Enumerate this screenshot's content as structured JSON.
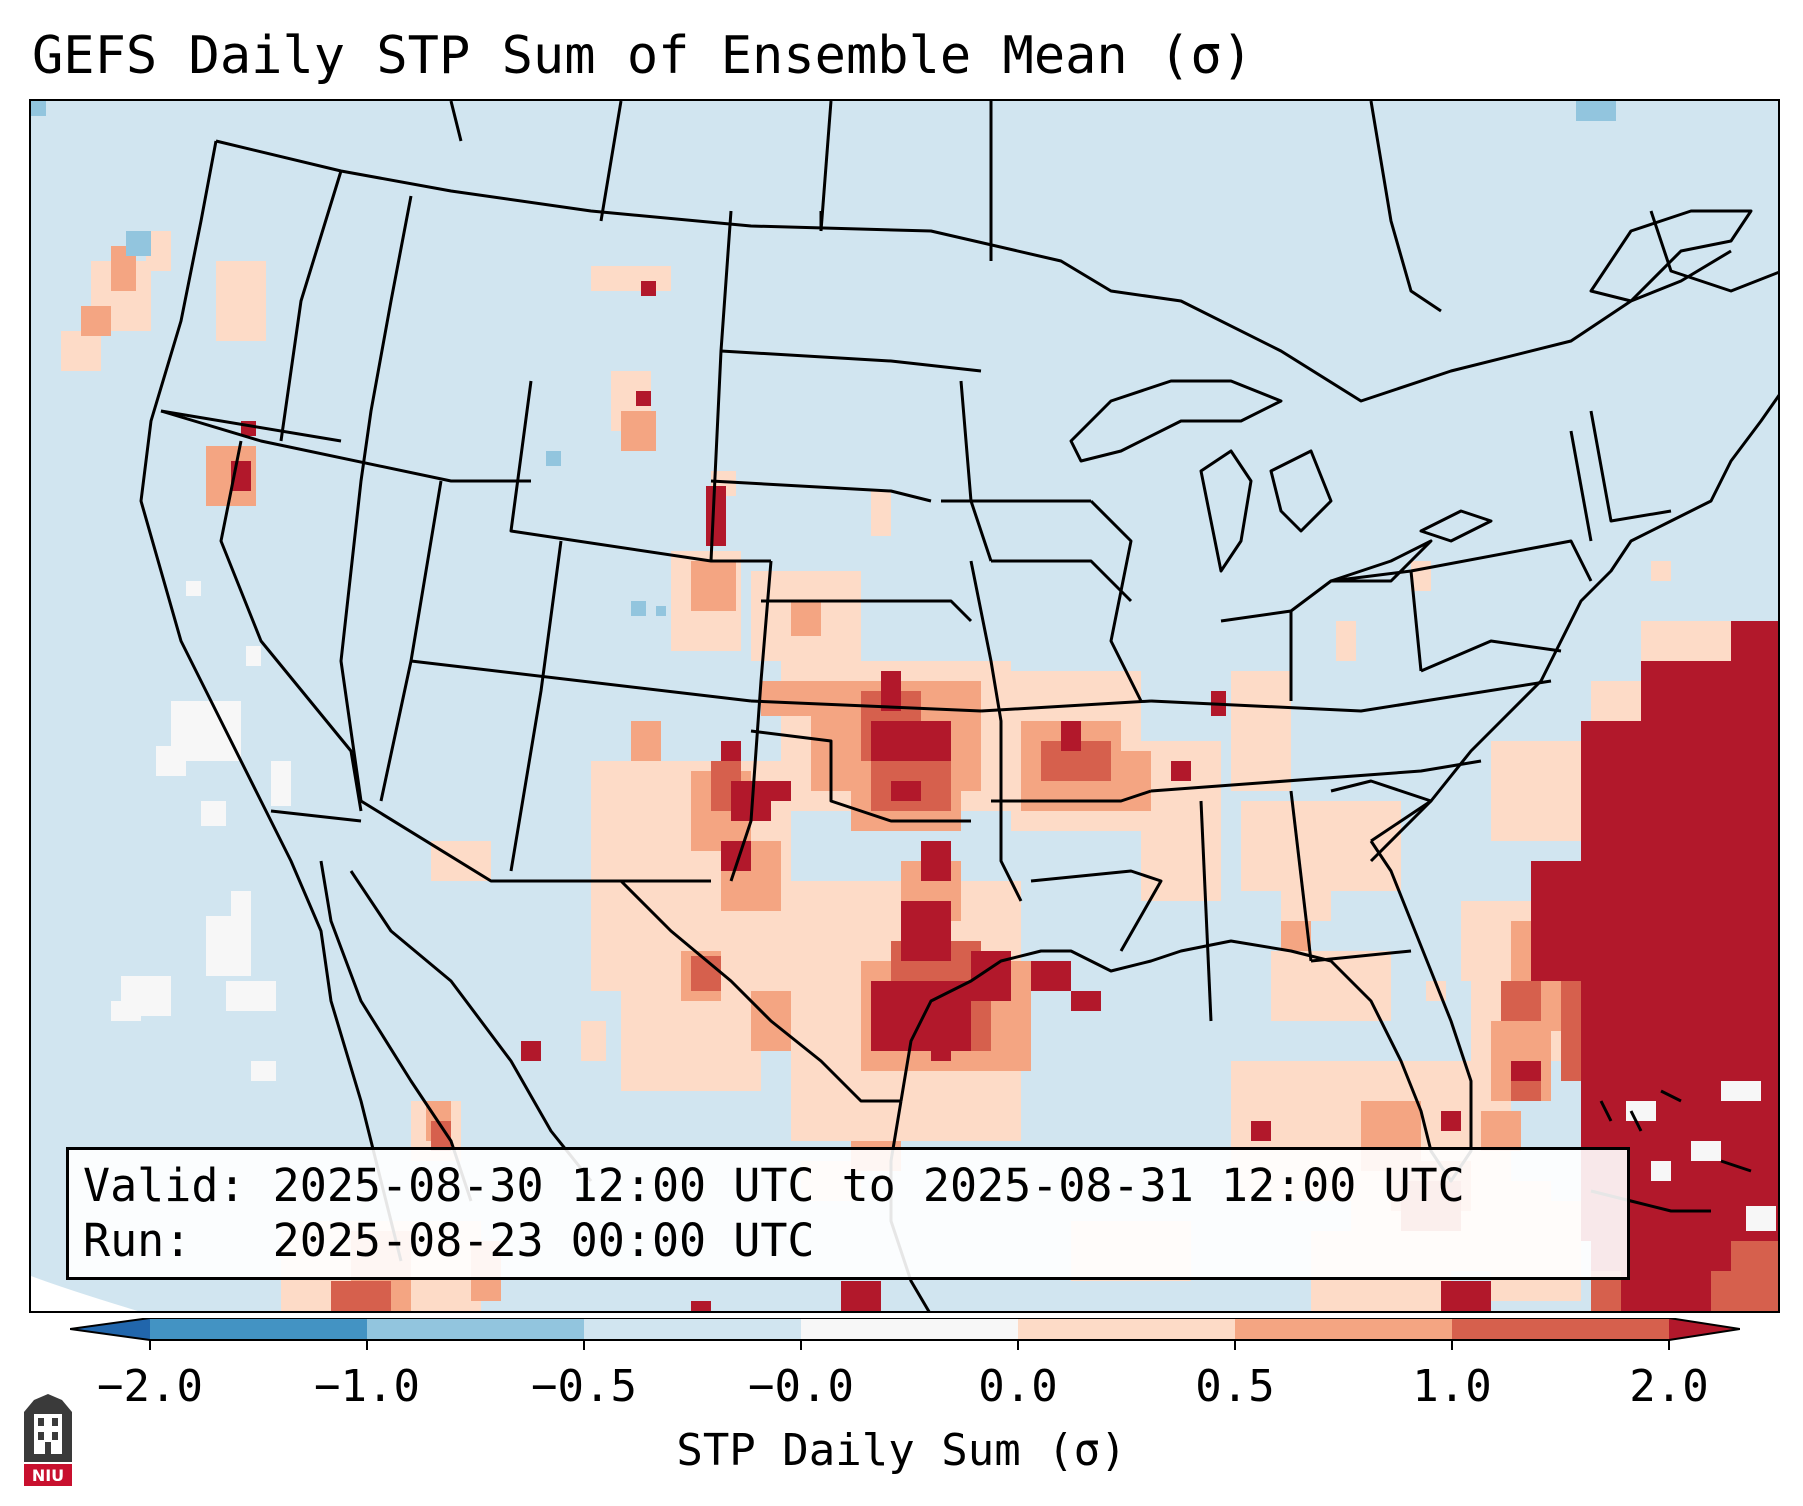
{
  "title": "GEFS Daily STP Sum of Ensemble Mean (σ)",
  "info": {
    "valid_label": "Valid:",
    "valid_text": "2025-08-30 12:00 UTC to 2025-08-31 12:00 UTC",
    "run_label": "Run:",
    "run_text": "2025-08-23 00:00 UTC"
  },
  "colorbar": {
    "label": "STP Daily Sum (σ)",
    "ticks": [
      "−2.0",
      "−1.0",
      "−0.5",
      "−0.0",
      "0.0",
      "0.5",
      "1.0",
      "2.0"
    ],
    "colors": {
      "extend_min": "#2166ac",
      "bin_neg2_neg1": "#4393c3",
      "bin_neg1_neg05": "#92c5de",
      "bin_neg05_0": "#d1e5f0",
      "bin_0_0": "#f7f7f7",
      "bin_0_05": "#fddbc7",
      "bin_05_1": "#f4a582",
      "bin_1_2": "#d6604d",
      "extend_max": "#b2182b"
    }
  },
  "map": {
    "background_color": "#d1e5f0",
    "outline_color": "#000000"
  },
  "logo_text": "NIU"
}
